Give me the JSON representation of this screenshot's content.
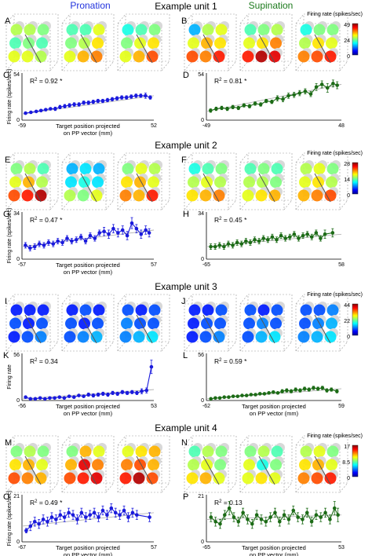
{
  "headers": {
    "pronation": "Pronation",
    "supination": "Supination"
  },
  "colorbar_title": "Firing rate (spikes/sec)",
  "colors": {
    "pronation": "#1a1adc",
    "supination": "#1c6b16",
    "header_pronation": "#2233dd",
    "header_supination": "#1c7a1c",
    "fit_line": "#aaaaaa"
  },
  "units": [
    {
      "title": "Example unit 1",
      "cube_letters": [
        "A",
        "B"
      ],
      "plot_letters": [
        "C",
        "D"
      ],
      "colorbar_ticks": [
        "49",
        "24",
        "0"
      ],
      "cube_rates": [
        [
          [
            0.55,
            0.55,
            0.5,
            0.45,
            0.5,
            0.45,
            0.6,
            0.6,
            0.55
          ],
          [
            0.45,
            0.45,
            0.6,
            0.5,
            0.55,
            0.65,
            0.6,
            0.7,
            0.75
          ],
          [
            0.4,
            0.45,
            0.5,
            0.5,
            0.6,
            0.65,
            0.6,
            0.7,
            0.8
          ]
        ],
        [
          [
            0.3,
            0.55,
            0.6,
            0.6,
            0.7,
            0.65,
            0.8,
            0.75,
            0.85
          ],
          [
            0.45,
            0.5,
            0.55,
            0.6,
            0.65,
            0.75,
            0.85,
            0.95,
            0.9
          ],
          [
            0.4,
            0.5,
            0.5,
            0.55,
            0.65,
            0.6,
            0.75,
            0.8,
            0.85
          ]
        ]
      ]
    },
    {
      "title": "Example unit 2",
      "cube_letters": [
        "E",
        "F"
      ],
      "plot_letters": [
        "G",
        "H"
      ],
      "colorbar_ticks": [
        "28",
        "14",
        "0"
      ],
      "cube_rates": [
        [
          [
            0.5,
            0.55,
            0.45,
            0.6,
            0.7,
            0.55,
            0.8,
            0.85,
            0.95
          ],
          [
            0.3,
            0.35,
            0.3,
            0.35,
            0.4,
            0.35,
            0.55,
            0.5,
            0.6
          ],
          [
            0.5,
            0.6,
            0.55,
            0.65,
            0.7,
            0.6,
            0.75,
            0.7,
            0.85
          ]
        ],
        [
          [
            0.4,
            0.45,
            0.5,
            0.55,
            0.6,
            0.55,
            0.65,
            0.7,
            0.75
          ],
          [
            0.45,
            0.5,
            0.45,
            0.55,
            0.55,
            0.5,
            0.6,
            0.65,
            0.7
          ],
          [
            0.55,
            0.6,
            0.5,
            0.6,
            0.65,
            0.55,
            0.7,
            0.75,
            0.8
          ]
        ]
      ]
    },
    {
      "title": "Example unit 3",
      "cube_letters": [
        "I",
        "J"
      ],
      "plot_letters": [
        "K",
        "L"
      ],
      "colorbar_ticks": [
        "44",
        "22",
        "0"
      ],
      "cube_rates": [
        [
          [
            0.15,
            0.15,
            0.15,
            0.2,
            0.15,
            0.2,
            0.15,
            0.2,
            0.25
          ],
          [
            0.15,
            0.2,
            0.15,
            0.2,
            0.15,
            0.2,
            0.2,
            0.25,
            0.3
          ],
          [
            0.2,
            0.15,
            0.2,
            0.25,
            0.2,
            0.2,
            0.25,
            0.3,
            0.35
          ]
        ],
        [
          [
            0.15,
            0.15,
            0.2,
            0.15,
            0.2,
            0.2,
            0.15,
            0.2,
            0.25
          ],
          [
            0.2,
            0.15,
            0.2,
            0.2,
            0.25,
            0.2,
            0.2,
            0.3,
            0.35
          ],
          [
            0.2,
            0.2,
            0.25,
            0.2,
            0.25,
            0.3,
            0.25,
            0.3,
            0.35
          ]
        ]
      ]
    },
    {
      "title": "Example unit 4",
      "cube_letters": [
        "M",
        "N"
      ],
      "plot_letters": [
        "O",
        "P"
      ],
      "colorbar_ticks": [
        "17",
        "8.5",
        "0"
      ],
      "cube_rates": [
        [
          [
            0.5,
            0.55,
            0.5,
            0.65,
            0.7,
            0.6,
            0.8,
            0.75,
            0.7
          ],
          [
            0.5,
            0.7,
            0.6,
            0.7,
            0.9,
            0.75,
            0.8,
            0.85,
            0.9
          ],
          [
            0.6,
            0.65,
            0.7,
            0.75,
            0.8,
            0.7,
            0.85,
            0.95,
            0.8
          ]
        ],
        [
          [
            0.45,
            0.55,
            0.5,
            0.55,
            0.6,
            0.5,
            0.65,
            0.7,
            0.6
          ],
          [
            0.5,
            0.55,
            0.45,
            0.6,
            0.4,
            0.5,
            0.6,
            0.65,
            0.6
          ],
          [
            0.55,
            0.6,
            0.5,
            0.65,
            0.7,
            0.6,
            0.75,
            0.8,
            0.85
          ]
        ]
      ]
    }
  ],
  "chart_data": [
    {
      "panel": "C",
      "type": "line",
      "color": "#1a1adc",
      "r2_label": "R",
      "r2_value": " = 0.92 *",
      "ylabel": "Firing rate (spikes/sec)",
      "xlabel_line1": "Target position projected",
      "xlabel_line2": "on PP vector (mm)",
      "xlim": [
        -59,
        52
      ],
      "ylim": [
        0,
        54
      ],
      "ytick_labels": [
        "54",
        "0"
      ],
      "xtick_labels": [
        "-59",
        "52"
      ],
      "x": [
        -56,
        -51.5,
        -47,
        -43,
        -39,
        -35,
        -31,
        -27,
        -23,
        -19,
        -15,
        -11,
        -7,
        -3,
        1,
        5,
        9,
        13,
        17,
        21,
        25,
        29,
        33,
        37,
        41,
        45,
        49
      ],
      "y": [
        8,
        9,
        10,
        11,
        12,
        13,
        13,
        15,
        16,
        17,
        18,
        18,
        20,
        20,
        21,
        22,
        22,
        23,
        24,
        25,
        26,
        26,
        27,
        28,
        28,
        28,
        26
      ],
      "yerr": [
        1,
        1,
        1,
        1,
        1,
        1,
        2,
        2,
        2,
        2,
        2,
        2,
        2,
        2,
        2,
        2,
        2,
        2,
        2,
        2,
        2,
        2,
        2,
        2,
        2,
        3,
        2
      ],
      "fit": [
        [
          -59,
          7
        ],
        [
          52,
          28
        ]
      ]
    },
    {
      "panel": "D",
      "type": "line",
      "color": "#1c6b16",
      "r2_label": "R",
      "r2_value": " = 0.81 *",
      "ylabel": "",
      "xlabel_line1": "",
      "xlabel_line2": "",
      "xlim": [
        -49,
        48
      ],
      "ylim": [
        0,
        54
      ],
      "ytick_labels": [
        "54",
        "0"
      ],
      "xtick_labels": [
        "-49",
        "48"
      ],
      "x": [
        -46,
        -42,
        -38,
        -34,
        -30,
        -26,
        -22,
        -18,
        -14,
        -10,
        -6,
        -2,
        2,
        6,
        10,
        14,
        18,
        22,
        26,
        30,
        34,
        38,
        42,
        45
      ],
      "y": [
        11,
        13,
        14,
        13,
        15,
        14,
        17,
        16,
        19,
        18,
        22,
        21,
        25,
        24,
        28,
        29,
        31,
        33,
        30,
        38,
        41,
        37,
        42,
        40
      ],
      "yerr": [
        2,
        2,
        2,
        2,
        2,
        2,
        2,
        2,
        2,
        2,
        2,
        2,
        3,
        3,
        3,
        3,
        3,
        3,
        3,
        4,
        4,
        5,
        4,
        4
      ],
      "fit": [
        [
          -49,
          10
        ],
        [
          48,
          41
        ]
      ]
    },
    {
      "panel": "G",
      "type": "line",
      "color": "#1a1adc",
      "r2_label": "R",
      "r2_value": " = 0.47 *",
      "ylabel": "Firing rate (spikes/sec)",
      "xlabel_line1": "Target position projected",
      "xlabel_line2": "on PP vector (mm)",
      "xlim": [
        -57,
        57
      ],
      "ylim": [
        0,
        34
      ],
      "ytick_labels": [
        "34",
        "0"
      ],
      "xtick_labels": [
        "-57",
        "57"
      ],
      "x": [
        -54,
        -50,
        -46,
        -42,
        -38,
        -34,
        -30,
        -26,
        -22,
        -18,
        -14,
        -10,
        -6,
        -2,
        2,
        6,
        10,
        14,
        18,
        22,
        26,
        30,
        34,
        38,
        42,
        46,
        50,
        53
      ],
      "y": [
        10,
        8,
        9,
        11,
        10,
        12,
        11,
        13,
        12,
        15,
        13,
        14,
        16,
        13,
        17,
        15,
        19,
        20,
        18,
        22,
        19,
        21,
        17,
        26,
        22,
        18,
        21,
        19
      ],
      "yerr": [
        2,
        2,
        2,
        2,
        2,
        2,
        2,
        2,
        2,
        2,
        2,
        2,
        2,
        2,
        2,
        2,
        2,
        3,
        3,
        3,
        3,
        3,
        3,
        4,
        3,
        3,
        3,
        3
      ],
      "fit": [
        [
          -57,
          9
        ],
        [
          57,
          21
        ]
      ]
    },
    {
      "panel": "H",
      "type": "line",
      "color": "#1c6b16",
      "r2_label": "R",
      "r2_value": " = 0.45 *",
      "ylabel": "",
      "xlabel_line1": "",
      "xlabel_line2": "",
      "xlim": [
        -65,
        58
      ],
      "ylim": [
        0,
        34
      ],
      "ytick_labels": [
        "34",
        "0"
      ],
      "xtick_labels": [
        "-65",
        "58"
      ],
      "x": [
        -61,
        -57,
        -53,
        -49,
        -45,
        -41,
        -37,
        -33,
        -29,
        -25,
        -21,
        -17,
        -13,
        -9,
        -5,
        -1,
        3,
        7,
        11,
        15,
        19,
        23,
        27,
        31,
        35,
        39,
        43,
        50
      ],
      "y": [
        9,
        9,
        10,
        9,
        11,
        10,
        12,
        11,
        13,
        12,
        14,
        13,
        15,
        14,
        16,
        14,
        17,
        15,
        16,
        18,
        15,
        17,
        18,
        16,
        19,
        15,
        18,
        19
      ],
      "yerr": [
        2,
        2,
        2,
        2,
        2,
        2,
        2,
        2,
        2,
        2,
        2,
        2,
        2,
        2,
        2,
        2,
        2,
        2,
        2,
        2,
        2,
        2,
        2,
        2,
        2,
        2,
        3,
        3
      ],
      "fit": [
        [
          -65,
          9
        ],
        [
          58,
          18
        ]
      ]
    },
    {
      "panel": "K",
      "type": "line",
      "color": "#1a1adc",
      "r2_label": "R",
      "r2_value": " = 0.34",
      "ylabel": "Firing rate",
      "xlabel_line1": "Target position projected",
      "xlabel_line2": "on PP vector (mm)",
      "xlim": [
        -56,
        53
      ],
      "ylim": [
        0,
        56
      ],
      "ytick_labels": [
        "56",
        "0"
      ],
      "xtick_labels": [
        "-56",
        "53"
      ],
      "x": [
        -53,
        -49,
        -45,
        -41,
        -37,
        -33,
        -29,
        -25,
        -21,
        -17,
        -13,
        -9,
        -5,
        -1,
        3,
        7,
        11,
        15,
        19,
        23,
        27,
        31,
        35,
        39,
        43,
        47,
        51
      ],
      "y": [
        4,
        2,
        2,
        3,
        2,
        3,
        3,
        4,
        3,
        5,
        4,
        6,
        5,
        7,
        6,
        7,
        8,
        7,
        9,
        8,
        10,
        9,
        10,
        9,
        11,
        12,
        40
      ],
      "yerr": [
        1,
        1,
        1,
        1,
        1,
        1,
        1,
        1,
        1,
        1,
        1,
        1,
        1,
        2,
        2,
        2,
        2,
        2,
        2,
        2,
        2,
        2,
        2,
        2,
        3,
        3,
        8
      ],
      "fit": [
        [
          -56,
          2
        ],
        [
          53,
          13
        ]
      ]
    },
    {
      "panel": "L",
      "type": "line",
      "color": "#1c6b16",
      "r2_label": "R",
      "r2_value": " = 0.59 *",
      "ylabel": "",
      "xlabel_line1": "Target position projected",
      "xlabel_line2": "on PP vector (mm)",
      "xlim": [
        -62,
        59
      ],
      "ylim": [
        0,
        56
      ],
      "ytick_labels": [
        "56",
        "0"
      ],
      "xtick_labels": [
        "-62",
        "59"
      ],
      "x": [
        -58,
        -54,
        -50,
        -46,
        -42,
        -38,
        -34,
        -30,
        -26,
        -22,
        -18,
        -14,
        -10,
        -6,
        -2,
        2,
        6,
        10,
        14,
        18,
        22,
        26,
        30,
        34,
        38,
        42,
        46,
        50,
        55
      ],
      "y": [
        2,
        3,
        3,
        4,
        4,
        5,
        5,
        6,
        6,
        7,
        7,
        8,
        8,
        9,
        10,
        9,
        11,
        12,
        11,
        13,
        12,
        14,
        13,
        15,
        14,
        15,
        12,
        13,
        11
      ],
      "yerr": [
        1,
        1,
        1,
        1,
        1,
        1,
        1,
        1,
        1,
        1,
        1,
        1,
        1,
        1,
        1,
        1,
        2,
        2,
        2,
        2,
        2,
        2,
        2,
        2,
        2,
        2,
        2,
        2,
        2
      ],
      "fit": [
        [
          -62,
          2
        ],
        [
          59,
          14
        ]
      ]
    },
    {
      "panel": "O",
      "type": "line",
      "color": "#1a1adc",
      "r2_label": "R",
      "r2_value": " = 0.49 *",
      "ylabel": "Firing rate (spikes/sec)",
      "xlabel_line1": "Target position projected",
      "xlabel_line2": "on PP vector (mm)",
      "xlim": [
        -67,
        57
      ],
      "ylim": [
        0,
        21
      ],
      "ytick_labels": [
        "21",
        "0"
      ],
      "xtick_labels": [
        "-67",
        "57"
      ],
      "x": [
        -63,
        -59,
        -55,
        -51,
        -47,
        -43,
        -39,
        -35,
        -31,
        -27,
        -23,
        -19,
        -15,
        -11,
        -7,
        -3,
        1,
        5,
        9,
        13,
        17,
        21,
        25,
        29,
        33,
        37,
        41,
        53
      ],
      "y": [
        5,
        7,
        9,
        8,
        10,
        9,
        11,
        10,
        12,
        11,
        13,
        12,
        10,
        13,
        11,
        12,
        13,
        11,
        14,
        12,
        15,
        13,
        12,
        14,
        11,
        13,
        12,
        11
      ],
      "yerr": [
        1,
        2,
        2,
        2,
        2,
        2,
        2,
        2,
        2,
        2,
        2,
        2,
        2,
        2,
        2,
        2,
        2,
        2,
        2,
        2,
        2,
        2,
        2,
        2,
        2,
        2,
        2,
        2
      ],
      "fit": [
        [
          -67,
          7
        ],
        [
          57,
          13
        ]
      ]
    },
    {
      "panel": "P",
      "type": "line",
      "color": "#1c6b16",
      "r2_label": "R",
      "r2_value": " = 0.13",
      "ylabel": "",
      "xlabel_line1": "Target position projected",
      "xlabel_line2": "on PP vector (mm)",
      "xlim": [
        -65,
        53
      ],
      "ylim": [
        0,
        21
      ],
      "ytick_labels": [
        "21",
        "0"
      ],
      "xtick_labels": [
        "-65",
        "53"
      ],
      "x": [
        -61,
        -57,
        -53,
        -49,
        -45,
        -41,
        -37,
        -33,
        -29,
        -25,
        -21,
        -17,
        -13,
        -9,
        -5,
        -1,
        3,
        7,
        11,
        15,
        19,
        23,
        27,
        31,
        35,
        39,
        43,
        47,
        50
      ],
      "y": [
        11,
        9,
        8,
        12,
        15,
        11,
        9,
        13,
        10,
        8,
        12,
        10,
        9,
        11,
        13,
        9,
        12,
        10,
        14,
        11,
        10,
        13,
        9,
        12,
        11,
        13,
        10,
        15,
        12
      ],
      "yerr": [
        2,
        2,
        2,
        2,
        3,
        2,
        2,
        2,
        2,
        2,
        2,
        2,
        2,
        2,
        2,
        2,
        2,
        2,
        2,
        2,
        2,
        2,
        2,
        2,
        2,
        2,
        2,
        3,
        3
      ],
      "fit": [
        [
          -65,
          10
        ],
        [
          53,
          12
        ]
      ]
    }
  ]
}
